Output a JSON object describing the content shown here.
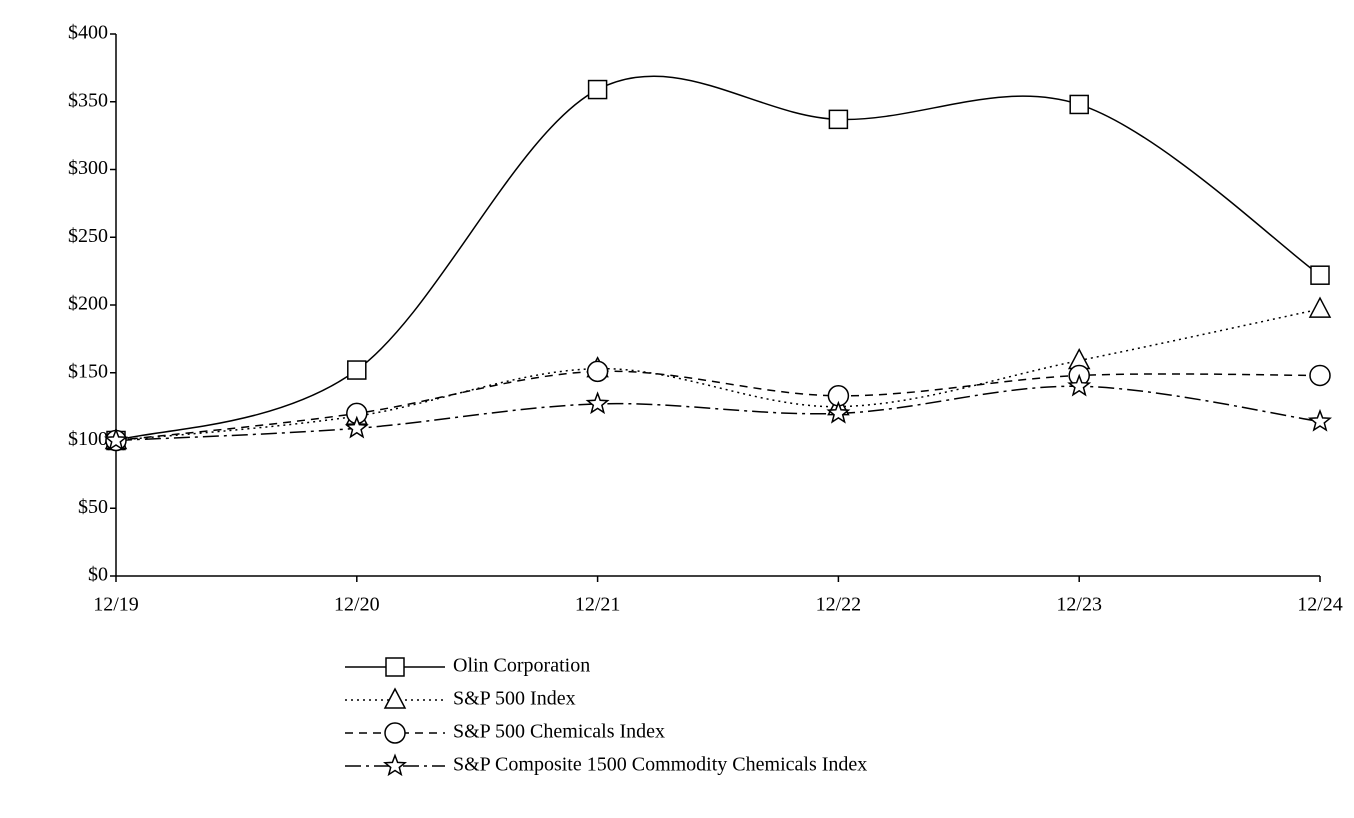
{
  "chart_data": {
    "type": "line",
    "smooth": true,
    "grid": false,
    "categories": [
      "12/19",
      "12/20",
      "12/21",
      "12/22",
      "12/23",
      "12/24"
    ],
    "ylim": [
      0,
      400
    ],
    "yticks": [
      {
        "value": 0,
        "label": "$0"
      },
      {
        "value": 50,
        "label": "$50"
      },
      {
        "value": 100,
        "label": "$100"
      },
      {
        "value": 150,
        "label": "$150"
      },
      {
        "value": 200,
        "label": "$200"
      },
      {
        "value": 250,
        "label": "$250"
      },
      {
        "value": 300,
        "label": "$300"
      },
      {
        "value": 350,
        "label": "$350"
      },
      {
        "value": 400,
        "label": "$400"
      }
    ],
    "series": [
      {
        "name": "Olin Corporation",
        "color": "#000000",
        "dash": "solid",
        "marker": "square",
        "values": [
          100,
          152,
          359,
          337,
          348,
          222
        ]
      },
      {
        "name": "S&P 500 Index",
        "color": "#000000",
        "dash": "dotted",
        "marker": "triangle",
        "values": [
          100,
          118,
          153,
          125,
          159,
          197
        ]
      },
      {
        "name": "S&P 500 Chemicals Index",
        "color": "#000000",
        "dash": "dashed",
        "marker": "circle",
        "values": [
          100,
          120,
          151,
          133,
          148,
          148
        ]
      },
      {
        "name": "S&P Composite 1500 Commodity Chemicals Index",
        "color": "#000000",
        "dash": "dashdot",
        "marker": "star",
        "values": [
          100,
          109,
          127,
          120,
          140,
          114
        ]
      }
    ]
  }
}
